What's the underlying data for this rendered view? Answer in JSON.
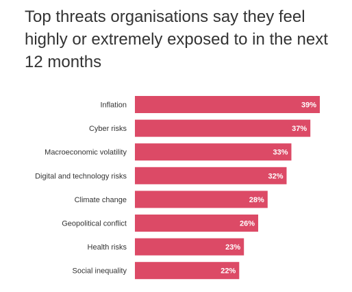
{
  "chart_data": {
    "type": "bar",
    "orientation": "horizontal",
    "title": "Top threats organisations say they feel highly or extremely exposed to in the next 12 months",
    "categories": [
      "Inflation",
      "Cyber risks",
      "Macroeconomic volatility",
      "Digital and technology risks",
      "Climate change",
      "Geopolitical conflict",
      "Health risks",
      "Social inequality"
    ],
    "values": [
      39,
      37,
      33,
      32,
      28,
      26,
      23,
      22
    ],
    "value_labels": [
      "39%",
      "37%",
      "33%",
      "32%",
      "28%",
      "26%",
      "23%",
      "22%"
    ],
    "unit": "%",
    "xlim": [
      0,
      39
    ],
    "grid": false,
    "legend": "none",
    "bar_color": "#dc4a66",
    "label_color": "#ffffff"
  }
}
